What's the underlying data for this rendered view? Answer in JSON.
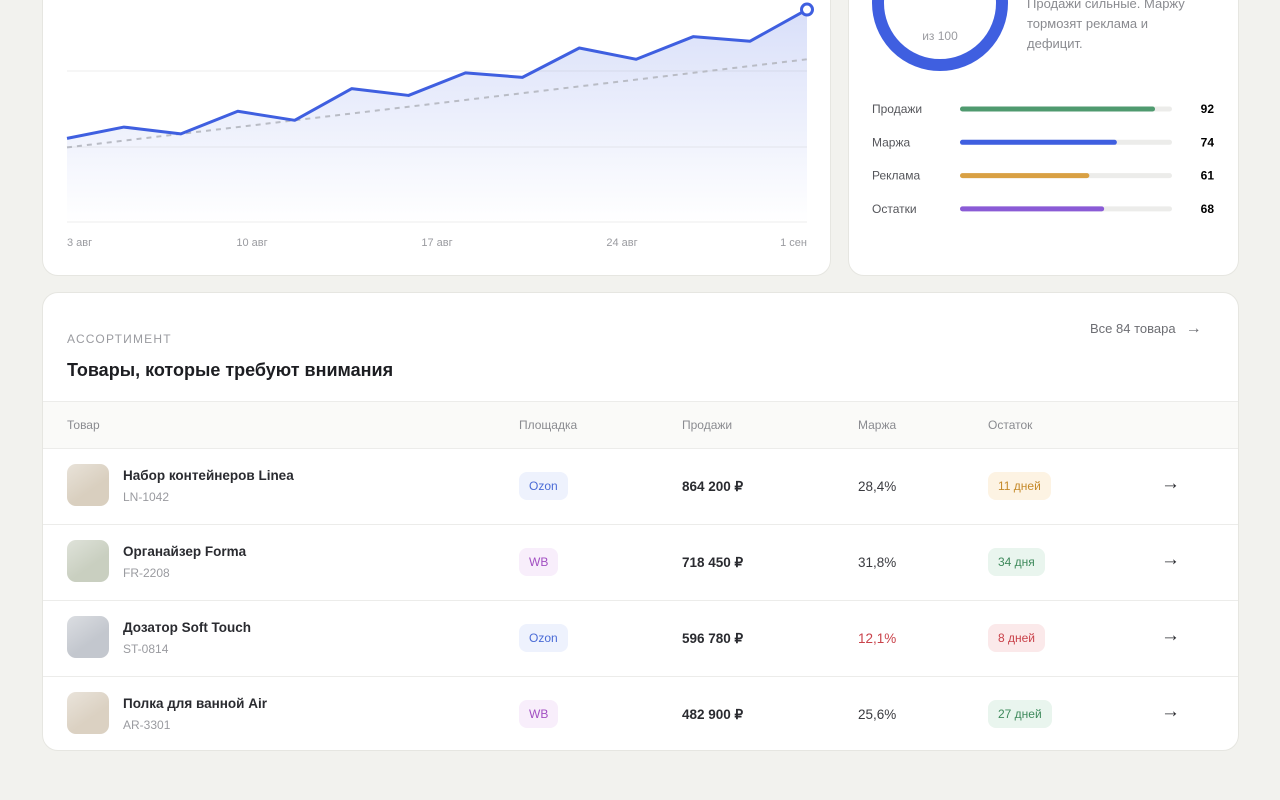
{
  "chart_data": {
    "type": "line",
    "x_labels": [
      "3 авг",
      "10 авг",
      "17 авг",
      "24 авг",
      "1 сен"
    ],
    "ylim": [
      0,
      100
    ],
    "series": [
      {
        "color": "#3f5fe0",
        "values": [
          37,
          42,
          39,
          49,
          45,
          59,
          56,
          66,
          64,
          77,
          72,
          82,
          80,
          94
        ]
      },
      {
        "color": "#b9bcc5",
        "style": "dashed",
        "values": [
          33,
          72
        ]
      }
    ]
  },
  "score": {
    "caption": "из 100",
    "color": "#3f5fe0",
    "summary": [
      "Продажи сильные. Маржу",
      "тормозят реклама и",
      "дефицит."
    ],
    "scale": [
      0,
      100
    ],
    "metrics": [
      {
        "label": "Продажи",
        "value": 92,
        "color": "#4f9a6f"
      },
      {
        "label": "Маржа",
        "value": 74,
        "color": "#3f5fe0"
      },
      {
        "label": "Реклама",
        "value": 61,
        "color": "#d9a043"
      },
      {
        "label": "Остатки",
        "value": 68,
        "color": "#8a5bd6"
      }
    ]
  },
  "products": {
    "eyebrow": "АССОРТИМЕНТ",
    "title": "Товары, которые требуют внимания",
    "link": "Все 84 товара",
    "columns": [
      "Товар",
      "Площадка",
      "Продажи",
      "Маржа",
      "Остаток"
    ],
    "rows": [
      {
        "name": "Набор контейнеров Linea",
        "sku": "LN-1042",
        "platform": "Ozon",
        "platform_tone": "blue",
        "sales": "864 200 ₽",
        "margin": "28,4%",
        "margin_tone": "neutral",
        "stock": "11 дней",
        "stock_tone": "orange",
        "thumb": "#d9cfbf"
      },
      {
        "name": "Органайзер Forma",
        "sku": "FR-2208",
        "platform": "WB",
        "platform_tone": "purple",
        "sales": "718 450 ₽",
        "margin": "31,8%",
        "margin_tone": "neutral",
        "stock": "34 дня",
        "stock_tone": "green",
        "thumb": "#c9cfc0"
      },
      {
        "name": "Дозатор Soft Touch",
        "sku": "ST-0814",
        "platform": "Ozon",
        "platform_tone": "blue",
        "sales": "596 780 ₽",
        "margin": "12,1%",
        "margin_tone": "red",
        "stock": "8 дней",
        "stock_tone": "red",
        "thumb": "#c3c7ce"
      },
      {
        "name": "Полка для ванной Air",
        "sku": "AR-3301",
        "platform": "WB",
        "platform_tone": "purple",
        "sales": "482 900 ₽",
        "margin": "25,6%",
        "margin_tone": "neutral",
        "stock": "27 дней",
        "stock_tone": "green",
        "thumb": "#dbd1c2"
      }
    ]
  }
}
